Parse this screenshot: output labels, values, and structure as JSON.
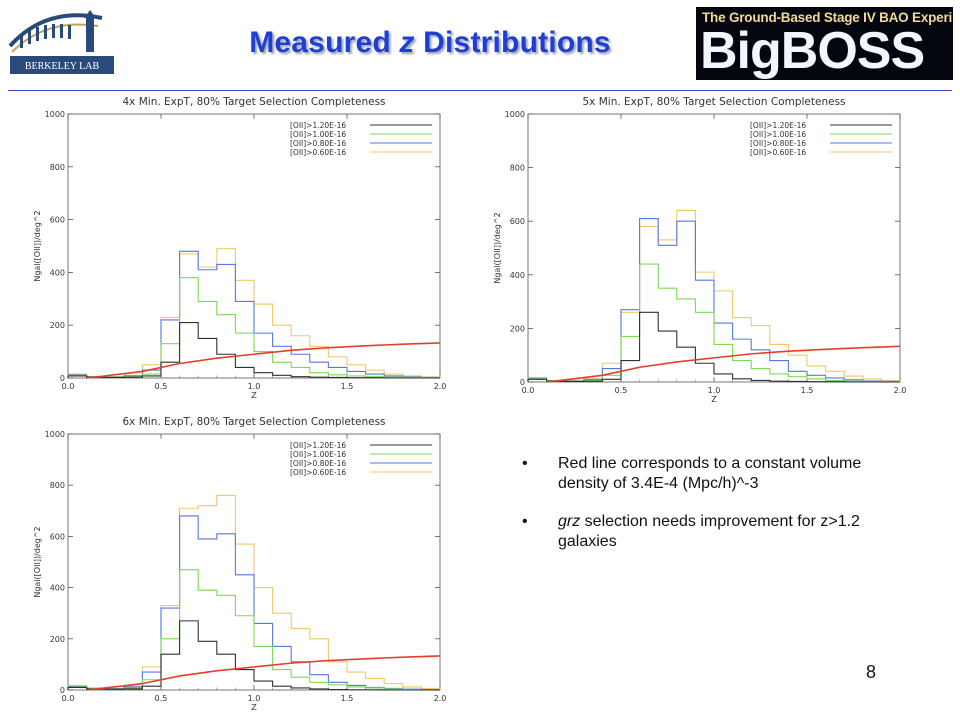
{
  "header": {
    "title_prefix": "Measured ",
    "title_italic": "z",
    "title_suffix": " Distributions",
    "left_logo_text": "BERKELEY LAB",
    "right_logo_subtitle": "The Ground-Based Stage IV BAO Experiment",
    "right_logo_main": "BigBOSS"
  },
  "colors": {
    "title": "#1f3fd1",
    "series_1_20": "#303030",
    "series_1_00": "#7ed957",
    "series_0_80": "#5877e6",
    "series_0_60": "#f2c86a",
    "density_line": "#e0402a"
  },
  "bullets": {
    "b1": "Red line corresponds to a constant volume density of 3.4E-4 (Mpc/h)^-3",
    "b2_italic": "grz",
    "b2_rest": " selection needs improvement for z>1.2 galaxies"
  },
  "page_number": "8",
  "chart_data": [
    {
      "type": "line",
      "title": "4x Min. ExpT, 80% Target Selection Completeness",
      "xlabel": "Z",
      "ylabel": "Ngal([OII])/deg^2",
      "xlim": [
        0.0,
        2.0
      ],
      "ylim": [
        0,
        1000
      ],
      "xticks": [
        "0.0",
        "0.5",
        "1.0",
        "1.5",
        "2.0"
      ],
      "yticks": [
        "0",
        "200",
        "400",
        "600",
        "800",
        "1000"
      ],
      "legend_position": "top-right",
      "bin_edges": [
        0.0,
        0.1,
        0.2,
        0.3,
        0.4,
        0.5,
        0.6,
        0.7,
        0.8,
        0.9,
        1.0,
        1.1,
        1.2,
        1.3,
        1.4,
        1.5,
        1.6,
        1.7,
        1.8,
        1.9,
        2.0
      ],
      "series": [
        {
          "name": "[OII]>1.20E-16",
          "color": "#303030",
          "values": [
            8,
            3,
            2,
            3,
            8,
            60,
            210,
            150,
            90,
            40,
            20,
            10,
            5,
            3,
            2,
            1,
            1,
            0,
            0,
            0
          ]
        },
        {
          "name": "[OII]>1.00E-16",
          "color": "#7ed957",
          "values": [
            10,
            4,
            3,
            5,
            15,
            130,
            380,
            290,
            240,
            170,
            100,
            60,
            40,
            20,
            12,
            8,
            5,
            3,
            2,
            1
          ]
        },
        {
          "name": "[OII]>0.80E-16",
          "color": "#5877e6",
          "values": [
            12,
            5,
            4,
            8,
            30,
            220,
            480,
            410,
            430,
            290,
            170,
            120,
            90,
            60,
            40,
            25,
            15,
            8,
            4,
            2
          ]
        },
        {
          "name": "[OII]>0.60E-16",
          "color": "#f2c86a",
          "values": [
            15,
            6,
            5,
            10,
            50,
            230,
            470,
            420,
            490,
            370,
            280,
            200,
            160,
            120,
            80,
            50,
            30,
            15,
            8,
            4
          ]
        }
      ],
      "density_curve": {
        "x": [
          0.1,
          0.2,
          0.4,
          0.6,
          0.8,
          1.0,
          1.2,
          1.4,
          1.6,
          1.8,
          2.0
        ],
        "y": [
          0,
          8,
          25,
          55,
          75,
          90,
          105,
          115,
          122,
          128,
          133
        ]
      }
    },
    {
      "type": "line",
      "title": "5x Min. ExpT, 80% Target Selection Completeness",
      "xlabel": "Z",
      "ylabel": "Ngal([OII])/deg^2",
      "xlim": [
        0.0,
        2.0
      ],
      "ylim": [
        0,
        1000
      ],
      "xticks": [
        "0.0",
        "0.5",
        "1.0",
        "1.5",
        "2.0"
      ],
      "yticks": [
        "0",
        "200",
        "400",
        "600",
        "800",
        "1000"
      ],
      "legend_position": "top-right",
      "bin_edges": [
        0.0,
        0.1,
        0.2,
        0.3,
        0.4,
        0.5,
        0.6,
        0.7,
        0.8,
        0.9,
        1.0,
        1.1,
        1.2,
        1.3,
        1.4,
        1.5,
        1.6,
        1.7,
        1.8,
        1.9,
        2.0
      ],
      "series": [
        {
          "name": "[OII]>1.20E-16",
          "color": "#303030",
          "values": [
            10,
            3,
            2,
            3,
            10,
            80,
            260,
            190,
            130,
            70,
            30,
            12,
            6,
            3,
            2,
            1,
            1,
            0,
            0,
            0
          ]
        },
        {
          "name": "[OII]>1.00E-16",
          "color": "#7ed957",
          "values": [
            12,
            4,
            3,
            6,
            25,
            170,
            440,
            350,
            310,
            260,
            140,
            80,
            50,
            30,
            20,
            12,
            6,
            3,
            2,
            1
          ]
        },
        {
          "name": "[OII]>0.80E-16",
          "color": "#5877e6",
          "values": [
            14,
            5,
            4,
            10,
            50,
            270,
            610,
            510,
            600,
            380,
            220,
            160,
            120,
            80,
            40,
            25,
            15,
            8,
            4,
            2
          ]
        },
        {
          "name": "[OII]>0.60E-16",
          "color": "#f2c86a",
          "values": [
            16,
            6,
            5,
            12,
            70,
            260,
            580,
            530,
            640,
            410,
            340,
            240,
            210,
            140,
            100,
            60,
            40,
            22,
            12,
            6
          ]
        }
      ],
      "density_curve": {
        "x": [
          0.1,
          0.2,
          0.4,
          0.6,
          0.8,
          1.0,
          1.2,
          1.4,
          1.6,
          1.8,
          2.0
        ],
        "y": [
          0,
          8,
          25,
          55,
          75,
          90,
          105,
          115,
          122,
          128,
          133
        ]
      }
    },
    {
      "type": "line",
      "title": "6x Min. ExpT, 80% Target Selection Completeness",
      "xlabel": "Z",
      "ylabel": "Ngal([OII])/deg^2",
      "xlim": [
        0.0,
        2.0
      ],
      "ylim": [
        0,
        1000
      ],
      "xticks": [
        "0.0",
        "0.5",
        "1.0",
        "1.5",
        "2.0"
      ],
      "yticks": [
        "0",
        "200",
        "400",
        "600",
        "800",
        "1000"
      ],
      "legend_position": "top-right",
      "bin_edges": [
        0.0,
        0.1,
        0.2,
        0.3,
        0.4,
        0.5,
        0.6,
        0.7,
        0.8,
        0.9,
        1.0,
        1.1,
        1.2,
        1.3,
        1.4,
        1.5,
        1.6,
        1.7,
        1.8,
        1.9,
        2.0
      ],
      "series": [
        {
          "name": "[OII]>1.20E-16",
          "color": "#303030",
          "values": [
            10,
            4,
            3,
            4,
            15,
            140,
            270,
            190,
            140,
            80,
            35,
            15,
            8,
            4,
            2,
            1,
            1,
            0,
            0,
            0
          ]
        },
        {
          "name": "[OII]>1.00E-16",
          "color": "#7ed957",
          "values": [
            12,
            5,
            4,
            8,
            40,
            200,
            470,
            390,
            370,
            290,
            170,
            80,
            50,
            30,
            20,
            12,
            8,
            4,
            2,
            1
          ]
        },
        {
          "name": "[OII]>0.80E-16",
          "color": "#5877e6",
          "values": [
            14,
            6,
            5,
            12,
            70,
            320,
            680,
            590,
            610,
            450,
            260,
            170,
            110,
            60,
            30,
            18,
            10,
            6,
            3,
            2
          ]
        },
        {
          "name": "[OII]>0.60E-16",
          "color": "#f2c86a",
          "values": [
            18,
            8,
            6,
            15,
            90,
            330,
            710,
            720,
            760,
            570,
            400,
            300,
            240,
            200,
            110,
            70,
            45,
            25,
            12,
            6
          ]
        }
      ],
      "density_curve": {
        "x": [
          0.1,
          0.2,
          0.4,
          0.6,
          0.8,
          1.0,
          1.2,
          1.4,
          1.6,
          1.8,
          2.0
        ],
        "y": [
          0,
          8,
          25,
          55,
          75,
          90,
          105,
          115,
          122,
          128,
          133
        ]
      }
    }
  ]
}
